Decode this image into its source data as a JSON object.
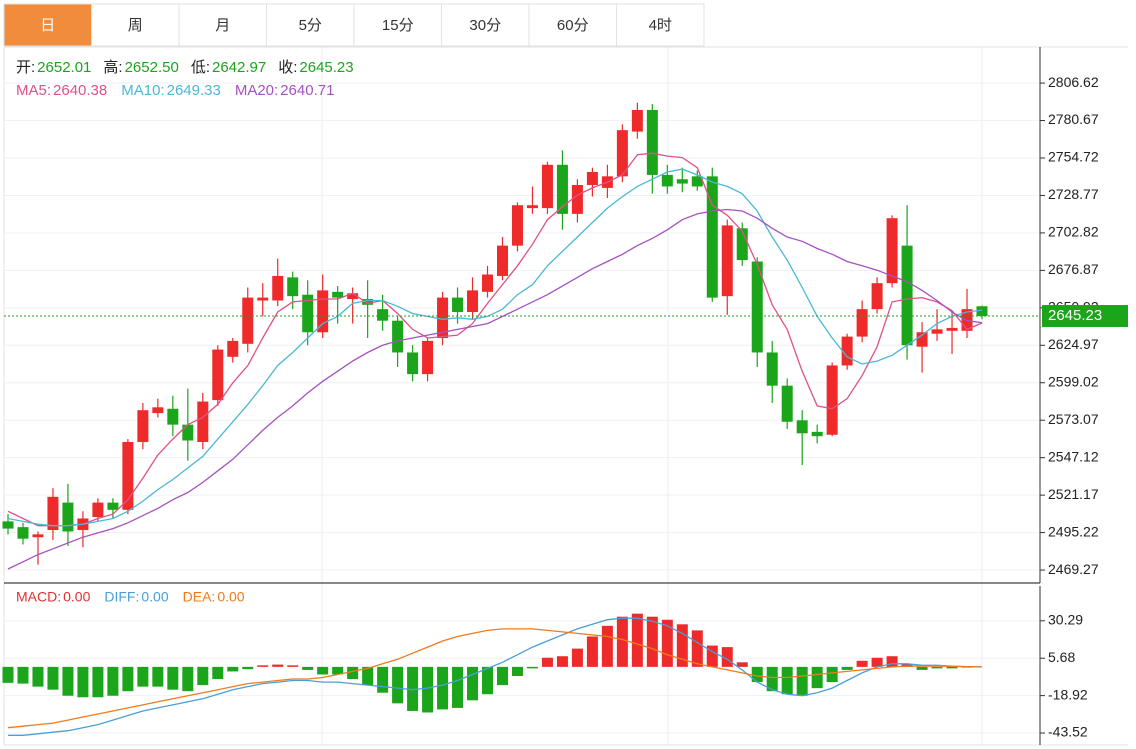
{
  "tabs": {
    "items": [
      "日",
      "周",
      "月",
      "5分",
      "15分",
      "30分",
      "60分",
      "4时"
    ],
    "active": 0
  },
  "chart_data": [
    {
      "type": "candlestick",
      "ohlc_header": [
        {
          "label": "开:",
          "value": "2652.01"
        },
        {
          "label": "高:",
          "value": "2652.50"
        },
        {
          "label": "低:",
          "value": "2642.97"
        },
        {
          "label": "收:",
          "value": "2645.23"
        }
      ],
      "header_value_color": "#1aa51a",
      "up_color": "#ee2a2a",
      "down_color": "#1aa51a",
      "open": [
        2503,
        2499,
        2492,
        2497,
        2516,
        2497,
        2506,
        2516,
        2511,
        2558,
        2578,
        2581,
        2570,
        2558,
        2587,
        2617,
        2626,
        2656,
        2656,
        2672,
        2660,
        2634,
        2662,
        2657,
        2657,
        2650,
        2642,
        2620,
        2605,
        2630,
        2658,
        2648,
        2662,
        2673,
        2694,
        2720,
        2720,
        2750,
        2716,
        2736,
        2734,
        2742,
        2773,
        2788,
        2743,
        2740,
        2742,
        2742,
        2659,
        2706,
        2683,
        2620,
        2597,
        2573,
        2565,
        2563,
        2611,
        2631,
        2650,
        2668,
        2694,
        2624,
        2633,
        2635,
        2635,
        2652.01
      ],
      "high": [
        2508,
        2502,
        2496,
        2526,
        2529,
        2510,
        2519,
        2519,
        2560,
        2585,
        2588,
        2590,
        2595,
        2592,
        2625,
        2630,
        2665,
        2668,
        2685,
        2676,
        2670,
        2674,
        2666,
        2665,
        2670,
        2660,
        2645,
        2625,
        2630,
        2662,
        2665,
        2672,
        2680,
        2700,
        2724,
        2735,
        2752,
        2760,
        2740,
        2748,
        2750,
        2778,
        2793,
        2792,
        2750,
        2748,
        2746,
        2748,
        2712,
        2710,
        2686,
        2628,
        2602,
        2580,
        2570,
        2613,
        2633,
        2656,
        2672,
        2715,
        2722,
        2641,
        2650,
        2648,
        2664,
        2652.5
      ],
      "low": [
        2494,
        2487,
        2473,
        2490,
        2486,
        2485,
        2503,
        2505,
        2508,
        2553,
        2575,
        2562,
        2545,
        2553,
        2583,
        2613,
        2620,
        2645,
        2652,
        2650,
        2625,
        2630,
        2640,
        2640,
        2630,
        2635,
        2610,
        2600,
        2600,
        2625,
        2640,
        2643,
        2658,
        2670,
        2690,
        2716,
        2716,
        2705,
        2710,
        2728,
        2727,
        2738,
        2768,
        2730,
        2730,
        2731,
        2732,
        2655,
        2646,
        2680,
        2610,
        2585,
        2567,
        2542,
        2557,
        2562,
        2608,
        2627,
        2647,
        2665,
        2615,
        2606,
        2628,
        2619,
        2630,
        2642.97
      ],
      "close": [
        2498,
        2491,
        2494,
        2520,
        2496,
        2505,
        2516,
        2511,
        2558,
        2580,
        2582,
        2570,
        2559,
        2586,
        2622,
        2628,
        2658,
        2658,
        2673,
        2659,
        2634,
        2663,
        2658,
        2661,
        2653,
        2642,
        2620,
        2605,
        2628,
        2658,
        2648,
        2663,
        2674,
        2694,
        2722,
        2722,
        2750,
        2716,
        2736,
        2745,
        2742,
        2774,
        2788,
        2743,
        2735,
        2737,
        2735,
        2658,
        2708,
        2684,
        2620,
        2597,
        2572,
        2564,
        2562,
        2611,
        2631,
        2650,
        2668,
        2713,
        2625,
        2634,
        2636,
        2637,
        2650,
        2645.23
      ],
      "series": [
        {
          "name": "MA5:",
          "color": "#e0508a",
          "values": [
            2510,
            2505,
            2500,
            2500,
            2500,
            2501,
            2505,
            2508,
            2518,
            2533,
            2549,
            2560,
            2570,
            2575,
            2584,
            2599,
            2611,
            2630,
            2648,
            2655,
            2656,
            2657,
            2657,
            2661,
            2654,
            2656,
            2647,
            2636,
            2630,
            2631,
            2632,
            2640,
            2654,
            2667,
            2680,
            2695,
            2712,
            2721,
            2729,
            2734,
            2738,
            2743,
            2757,
            2758,
            2756,
            2755,
            2748,
            2722,
            2715,
            2704,
            2681,
            2653,
            2636,
            2607,
            2583,
            2581,
            2588,
            2604,
            2624,
            2655,
            2657,
            2658,
            2655,
            2649,
            2636,
            2640.38
          ]
        },
        {
          "name": "MA10:",
          "color": "#4ab8d6",
          "values": [
            2505,
            2503,
            2501,
            2500,
            2500,
            2501,
            2503,
            2505,
            2510,
            2517,
            2525,
            2532,
            2540,
            2548,
            2560,
            2572,
            2584,
            2597,
            2611,
            2620,
            2630,
            2640,
            2645,
            2654,
            2656,
            2656,
            2652,
            2647,
            2645,
            2643,
            2644,
            2643,
            2645,
            2650,
            2660,
            2667,
            2680,
            2690,
            2700,
            2710,
            2720,
            2728,
            2735,
            2740,
            2745,
            2747,
            2743,
            2738,
            2735,
            2730,
            2718,
            2700,
            2684,
            2665,
            2645,
            2630,
            2617,
            2612,
            2614,
            2618,
            2625,
            2632,
            2640,
            2645,
            2648,
            2649.33
          ]
        },
        {
          "name": "MA20:",
          "color": "#a452c0",
          "values": [
            2470,
            2475,
            2480,
            2484,
            2488,
            2492,
            2495,
            2498,
            2502,
            2507,
            2512,
            2518,
            2523,
            2530,
            2538,
            2546,
            2556,
            2566,
            2575,
            2583,
            2592,
            2600,
            2607,
            2614,
            2620,
            2625,
            2628,
            2630,
            2632,
            2634,
            2636,
            2638,
            2640,
            2645,
            2650,
            2655,
            2660,
            2666,
            2672,
            2678,
            2683,
            2688,
            2694,
            2699,
            2705,
            2712,
            2716,
            2718,
            2719,
            2718,
            2713,
            2706,
            2700,
            2697,
            2692,
            2688,
            2683,
            2680,
            2677,
            2673,
            2669,
            2663,
            2656,
            2648,
            2642,
            2640.71
          ]
        }
      ],
      "ylim": [
        2460.3,
        2831.6
      ],
      "yticks": [
        2806.62,
        2780.67,
        2754.72,
        2728.77,
        2702.82,
        2676.87,
        2650.92,
        2624.97,
        2599.02,
        2573.07,
        2547.12,
        2521.17,
        2495.22,
        2469.27
      ],
      "grid": true
    },
    {
      "type": "macd",
      "header": [
        {
          "label": "MACD:",
          "value": "0.00",
          "color": "#e03030"
        },
        {
          "label": "DIFF:",
          "value": "0.00",
          "color": "#4a9fd8"
        },
        {
          "label": "DEA:",
          "value": "0.00",
          "color": "#f07a1c"
        }
      ],
      "up_color": "#ee2a2a",
      "down_color": "#1aa51a",
      "histogram": [
        -10.5,
        -11,
        -13,
        -15,
        -19,
        -20,
        -20,
        -19,
        -16,
        -13,
        -13,
        -15,
        -16,
        -12,
        -8,
        -3,
        -1.5,
        1,
        1.5,
        1,
        -2,
        -5,
        -5,
        -8,
        -12,
        -17,
        -24,
        -29,
        -30,
        -28,
        -27,
        -22,
        -18,
        -12,
        -6,
        -1,
        6,
        7,
        12,
        20,
        27,
        33,
        35,
        33,
        31,
        28,
        24,
        14,
        13,
        3,
        -10,
        -16,
        -18,
        -19,
        -14,
        -10,
        -2,
        4,
        6,
        7,
        2,
        -2,
        -1,
        -1,
        -0.5,
        0
      ],
      "series": [
        {
          "name": "DIFF",
          "color": "#4a9fd8",
          "values": [
            -45,
            -45,
            -44,
            -43,
            -42,
            -40,
            -38,
            -35,
            -32,
            -29,
            -27,
            -25,
            -23,
            -21,
            -18,
            -15,
            -13,
            -11,
            -10,
            -9,
            -9,
            -10,
            -10,
            -11,
            -12,
            -13,
            -14,
            -15,
            -14,
            -12,
            -9,
            -5,
            -1,
            3,
            8,
            13,
            17,
            21,
            25,
            28,
            31,
            32,
            32,
            30,
            27,
            22,
            16,
            10,
            5,
            -2,
            -10,
            -15,
            -18,
            -19,
            -17,
            -14,
            -9,
            -4,
            0,
            2,
            2,
            1,
            1,
            0.5,
            0.2,
            0
          ]
        },
        {
          "name": "DEA",
          "color": "#f07a1c",
          "values": [
            -40,
            -39,
            -38,
            -37,
            -35,
            -33,
            -31,
            -29,
            -27,
            -25,
            -23,
            -21,
            -19,
            -17,
            -15,
            -13,
            -11,
            -10,
            -9,
            -8,
            -8,
            -7,
            -5,
            -3,
            -1,
            2,
            5,
            9,
            13,
            17,
            20,
            22,
            24,
            25,
            25,
            25,
            24,
            23,
            22,
            21,
            20,
            18,
            15,
            12,
            8,
            5,
            2,
            0,
            -2,
            -4,
            -6,
            -7,
            -7,
            -6,
            -5,
            -4,
            -3,
            -2,
            -1,
            0,
            0.5,
            0.5,
            0.5,
            0.3,
            0.1,
            0
          ]
        }
      ],
      "ylim": [
        -51.4,
        53.2
      ],
      "yticks": [
        30.29,
        5.68,
        -18.92,
        -43.52
      ],
      "grid": true
    }
  ]
}
